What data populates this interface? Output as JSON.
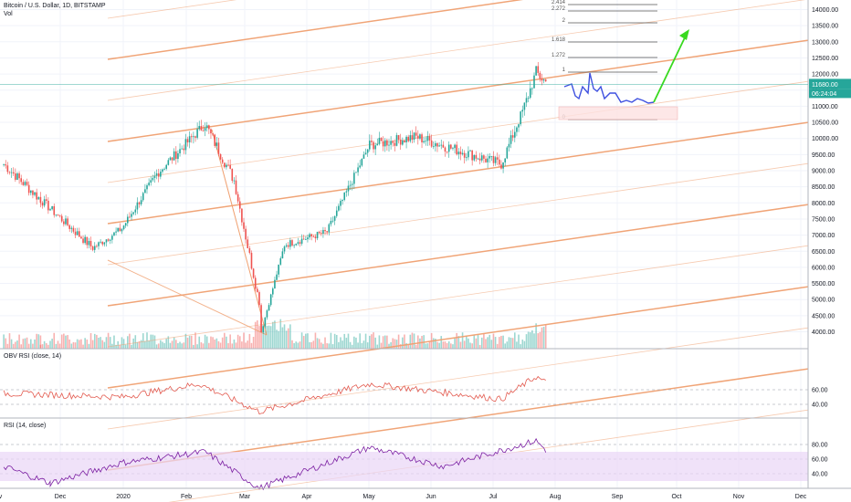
{
  "header": {
    "title": "Bitcoin / U.S. Dollar, 1D, BITSTAMP",
    "volume_label": "Vol"
  },
  "panes": {
    "obv_rsi_label": "OBV RSI (close, 14)",
    "rsi_label": "RSI (14, close)"
  },
  "price_badges": {
    "level": "11680.00",
    "last": "11680.00",
    "countdown": "06:24:04"
  },
  "colors": {
    "up": "#26a69a",
    "down": "#ef5350",
    "pitchfork": "#f0a070",
    "projection": "#3f51e0",
    "arrow": "#39d91f",
    "rsi": "#7b1fa2",
    "rsi_band": "#e9d5f7",
    "obv": "#e35a4f",
    "badge_level": "#26a69a",
    "badge_last": "#26a69a"
  },
  "chart_data": [
    {
      "type": "candlestick",
      "title": "Bitcoin / U.S. Dollar, 1D, BITSTAMP",
      "x_ticks": [
        "Nov",
        "Dec",
        "2020",
        "Feb",
        "Mar",
        "Apr",
        "May",
        "Jun",
        "Jul",
        "Aug",
        "Sep",
        "Oct",
        "Nov",
        "Dec"
      ],
      "y_ticks": [
        4000,
        4500,
        5000,
        5500,
        6000,
        6500,
        7000,
        7500,
        8000,
        8500,
        9000,
        9500,
        10000,
        10500,
        11000,
        11500,
        12000,
        12500,
        13000,
        13500,
        14000
      ],
      "y_tick_labels": [
        "4000.00",
        "4500.00",
        "5000.00",
        "5500.00",
        "6000.00",
        "6500.00",
        "7000.00",
        "7500.00",
        "8000.00",
        "8500.00",
        "9000.00",
        "9500.00",
        "10000.00",
        "10500.00",
        "11000.00",
        "11500.00",
        "12000.00",
        "12500.00",
        "13000.00",
        "13500.00",
        "14000.00"
      ],
      "ylim": [
        3750,
        14200
      ],
      "key_points": [
        {
          "date": "2019-11-01",
          "close": 9200
        },
        {
          "date": "2019-11-20",
          "close": 8100
        },
        {
          "date": "2019-12-17",
          "close": 6600
        },
        {
          "date": "2020-01-01",
          "close": 7200
        },
        {
          "date": "2020-01-19",
          "close": 8900
        },
        {
          "date": "2020-02-13",
          "close": 10450
        },
        {
          "date": "2020-02-28",
          "close": 8700
        },
        {
          "date": "2020-03-12",
          "close": 4900
        },
        {
          "date": "2020-03-13",
          "close": 4000
        },
        {
          "date": "2020-03-25",
          "close": 6700
        },
        {
          "date": "2020-04-16",
          "close": 7100
        },
        {
          "date": "2020-05-08",
          "close": 9800
        },
        {
          "date": "2020-06-01",
          "close": 10050
        },
        {
          "date": "2020-07-15",
          "close": 9200
        },
        {
          "date": "2020-07-27",
          "close": 11000
        },
        {
          "date": "2020-08-02",
          "close": 12050
        },
        {
          "date": "2020-08-08",
          "close": 11680
        }
      ],
      "volume": {
        "label": "Vol"
      },
      "fibonacci_levels": [
        "0",
        "1",
        "1.272",
        "1.618",
        "2",
        "2.272",
        "2.414"
      ],
      "current_price": 11680,
      "countdown": "06:24:04"
    },
    {
      "type": "line",
      "name": "OBV RSI (close, 14)",
      "y_ticks": [
        40,
        60
      ],
      "y_tick_labels": [
        "40.00",
        "60.00"
      ],
      "ylim": [
        25,
        85
      ],
      "key_points": [
        {
          "date": "2019-11-01",
          "value": 55
        },
        {
          "date": "2020-01-01",
          "value": 50
        },
        {
          "date": "2020-02-10",
          "value": 68
        },
        {
          "date": "2020-03-12",
          "value": 30
        },
        {
          "date": "2020-05-08",
          "value": 68
        },
        {
          "date": "2020-07-15",
          "value": 47
        },
        {
          "date": "2020-08-02",
          "value": 78
        },
        {
          "date": "2020-08-08",
          "value": 68
        }
      ]
    },
    {
      "type": "line",
      "name": "RSI (14, close)",
      "y_ticks": [
        40,
        60,
        80
      ],
      "y_tick_labels": [
        "40.00",
        "60.00",
        "80.00"
      ],
      "ylim": [
        15,
        90
      ],
      "bands": [
        30,
        70
      ],
      "key_points": [
        {
          "date": "2019-11-01",
          "value": 50
        },
        {
          "date": "2019-11-25",
          "value": 27
        },
        {
          "date": "2020-01-01",
          "value": 55
        },
        {
          "date": "2020-02-13",
          "value": 70
        },
        {
          "date": "2020-03-12",
          "value": 20
        },
        {
          "date": "2020-05-08",
          "value": 76
        },
        {
          "date": "2020-06-15",
          "value": 50
        },
        {
          "date": "2020-08-02",
          "value": 85
        },
        {
          "date": "2020-08-08",
          "value": 70
        }
      ]
    }
  ]
}
